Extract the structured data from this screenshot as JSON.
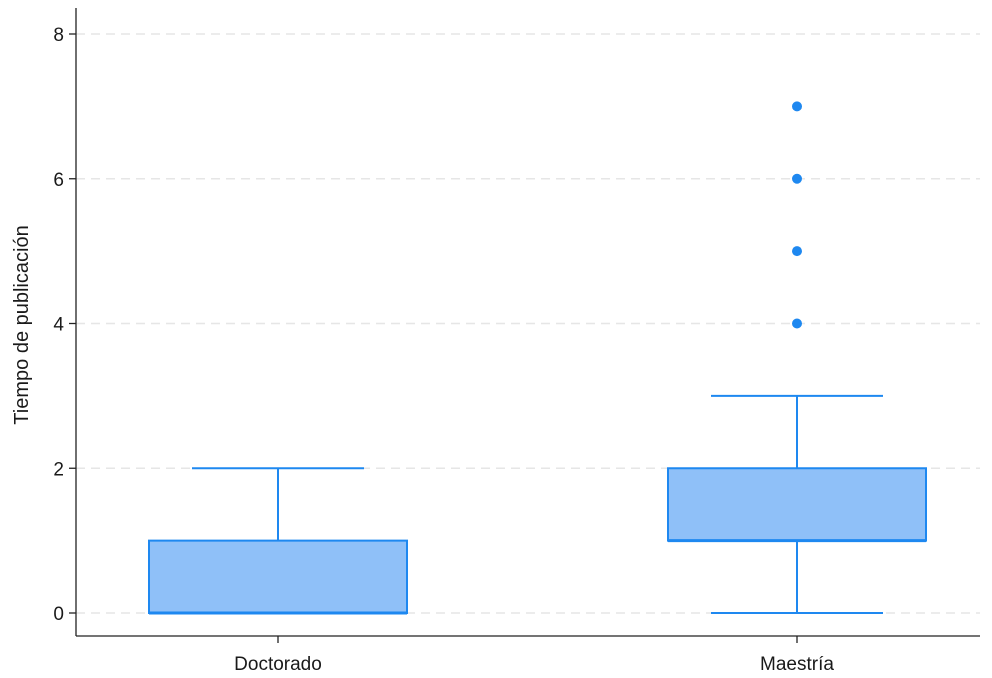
{
  "chart_data": {
    "type": "box",
    "title": "",
    "xlabel": "",
    "ylabel": "Tiempo de publicación",
    "ylim": [
      0,
      8
    ],
    "yticks": [
      0,
      2,
      4,
      6,
      8
    ],
    "grid": true,
    "categories": [
      "Doctorado",
      "Maestría"
    ],
    "boxes": [
      {
        "category": "Doctorado",
        "whisker_low": 0,
        "q1": 0,
        "median": 0,
        "q3": 1,
        "whisker_high": 2,
        "outliers": []
      },
      {
        "category": "Maestría",
        "whisker_low": 0,
        "q1": 1,
        "median": 1,
        "q3": 2,
        "whisker_high": 3,
        "outliers": [
          4,
          5,
          6,
          7
        ]
      }
    ],
    "colors": {
      "box_fill": "#8fc0f8",
      "box_stroke": "#1e88f0",
      "outlier": "#1e88f0",
      "grid": "#e6e6e6",
      "axis": "#222222"
    }
  }
}
